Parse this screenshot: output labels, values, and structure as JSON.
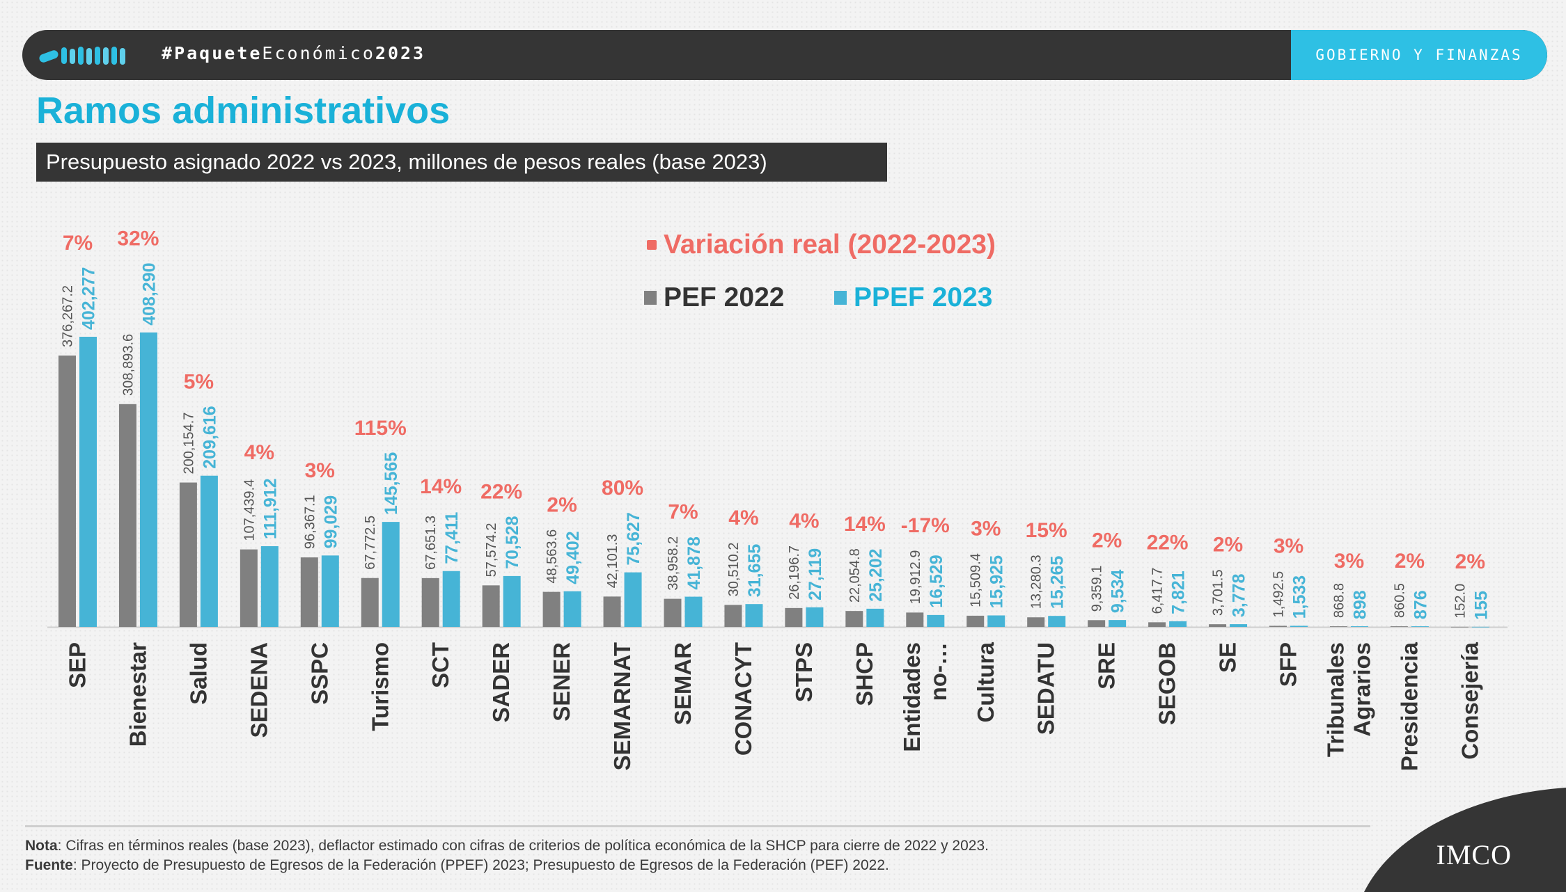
{
  "header": {
    "hashtag_hash": "#",
    "hashtag_bold1": "Paquete",
    "hashtag_light": "Económico",
    "hashtag_bold2": "2023",
    "section": "GOBIERNO Y FINANZAS"
  },
  "colors": {
    "pef2022": "#808080",
    "ppef2023": "#46b4d6",
    "variation": "#ef6b64",
    "title": "#1ab1d8"
  },
  "chart_data": {
    "type": "bar",
    "title": "Ramos administrativos",
    "subtitle": "Presupuesto asignado 2022 vs 2023, millones de pesos reales (base 2023)",
    "categories": [
      "SEP",
      "Bienestar",
      "Salud",
      "SEDENA",
      "SSPC",
      "Turismo",
      "SCT",
      "SADER",
      "SENER",
      "SEMARNAT",
      "SEMAR",
      "CONACYT",
      "STPS",
      "SHCP",
      "Entidades no-…",
      "Cultura",
      "SEDATU",
      "SRE",
      "SEGOB",
      "SE",
      "SFP",
      "Tribunales Agrarios",
      "Presidencia",
      "Consejería"
    ],
    "series": [
      {
        "name": "PEF 2022",
        "values": [
          376267.2,
          308893.6,
          200154.7,
          107439.4,
          96367.1,
          67772.5,
          67651.3,
          57574.2,
          48563.6,
          42101.3,
          38958.2,
          30510.2,
          26196.7,
          22054.8,
          19912.9,
          15509.4,
          13280.3,
          9359.1,
          6417.7,
          3701.5,
          1492.5,
          868.8,
          860.5,
          152.0
        ]
      },
      {
        "name": "PPEF 2023",
        "values": [
          402277,
          408290,
          209616,
          111912,
          99029,
          145565,
          77411,
          70528,
          49402,
          75627,
          41878,
          31655,
          27119,
          25202,
          16529,
          15925,
          15265,
          9534,
          7821,
          3778,
          1533,
          898,
          876,
          155
        ]
      }
    ],
    "value_labels_2022": [
      "376,267.2",
      "308,893.6",
      "200,154.7",
      "107,439.4",
      "96,367.1",
      "67,772.5",
      "67,651.3",
      "57,574.2",
      "48,563.6",
      "42,101.3",
      "38,958.2",
      "30,510.2",
      "26,196.7",
      "22,054.8",
      "19,912.9",
      "15,509.4",
      "13,280.3",
      "9,359.1",
      "6,417.7",
      "3,701.5",
      "1,492.5",
      "868.8",
      "860.5",
      "152.0"
    ],
    "value_labels_2023": [
      "402,277",
      "408,290",
      "209,616",
      "111,912",
      "99,029",
      "145,565",
      "77,411",
      "70,528",
      "49,402",
      "75,627",
      "41,878",
      "31,655",
      "27,119",
      "25,202",
      "16,529",
      "15,925",
      "15,265",
      "9,534",
      "7,821",
      "3,778",
      "1,533",
      "898",
      "876",
      "155"
    ],
    "variation_labels": [
      "7%",
      "32%",
      "5%",
      "4%",
      "3%",
      "115%",
      "14%",
      "22%",
      "2%",
      "80%",
      "7%",
      "4%",
      "4%",
      "14%",
      "-17%",
      "3%",
      "15%",
      "2%",
      "22%",
      "2%",
      "3%",
      "3%",
      "2%",
      "2%"
    ],
    "legend": {
      "variation": "Variación real (2022-2023)",
      "pef2022": "PEF 2022",
      "ppef2023": "PPEF 2023"
    },
    "ylim": [
      0,
      410000
    ],
    "grid": false
  },
  "footer": {
    "note_label": "Nota",
    "note_text": ": Cifras en términos reales (base 2023), deflactor estimado con cifras de criterios de política económica de la SHCP para cierre de 2022 y 2023.",
    "source_label": "Fuente",
    "source_text": ": Proyecto de Presupuesto de Egresos de la Federación (PPEF) 2023; Presupuesto de Egresos de la Federación (PEF) 2022.",
    "logo": "IMCO"
  }
}
